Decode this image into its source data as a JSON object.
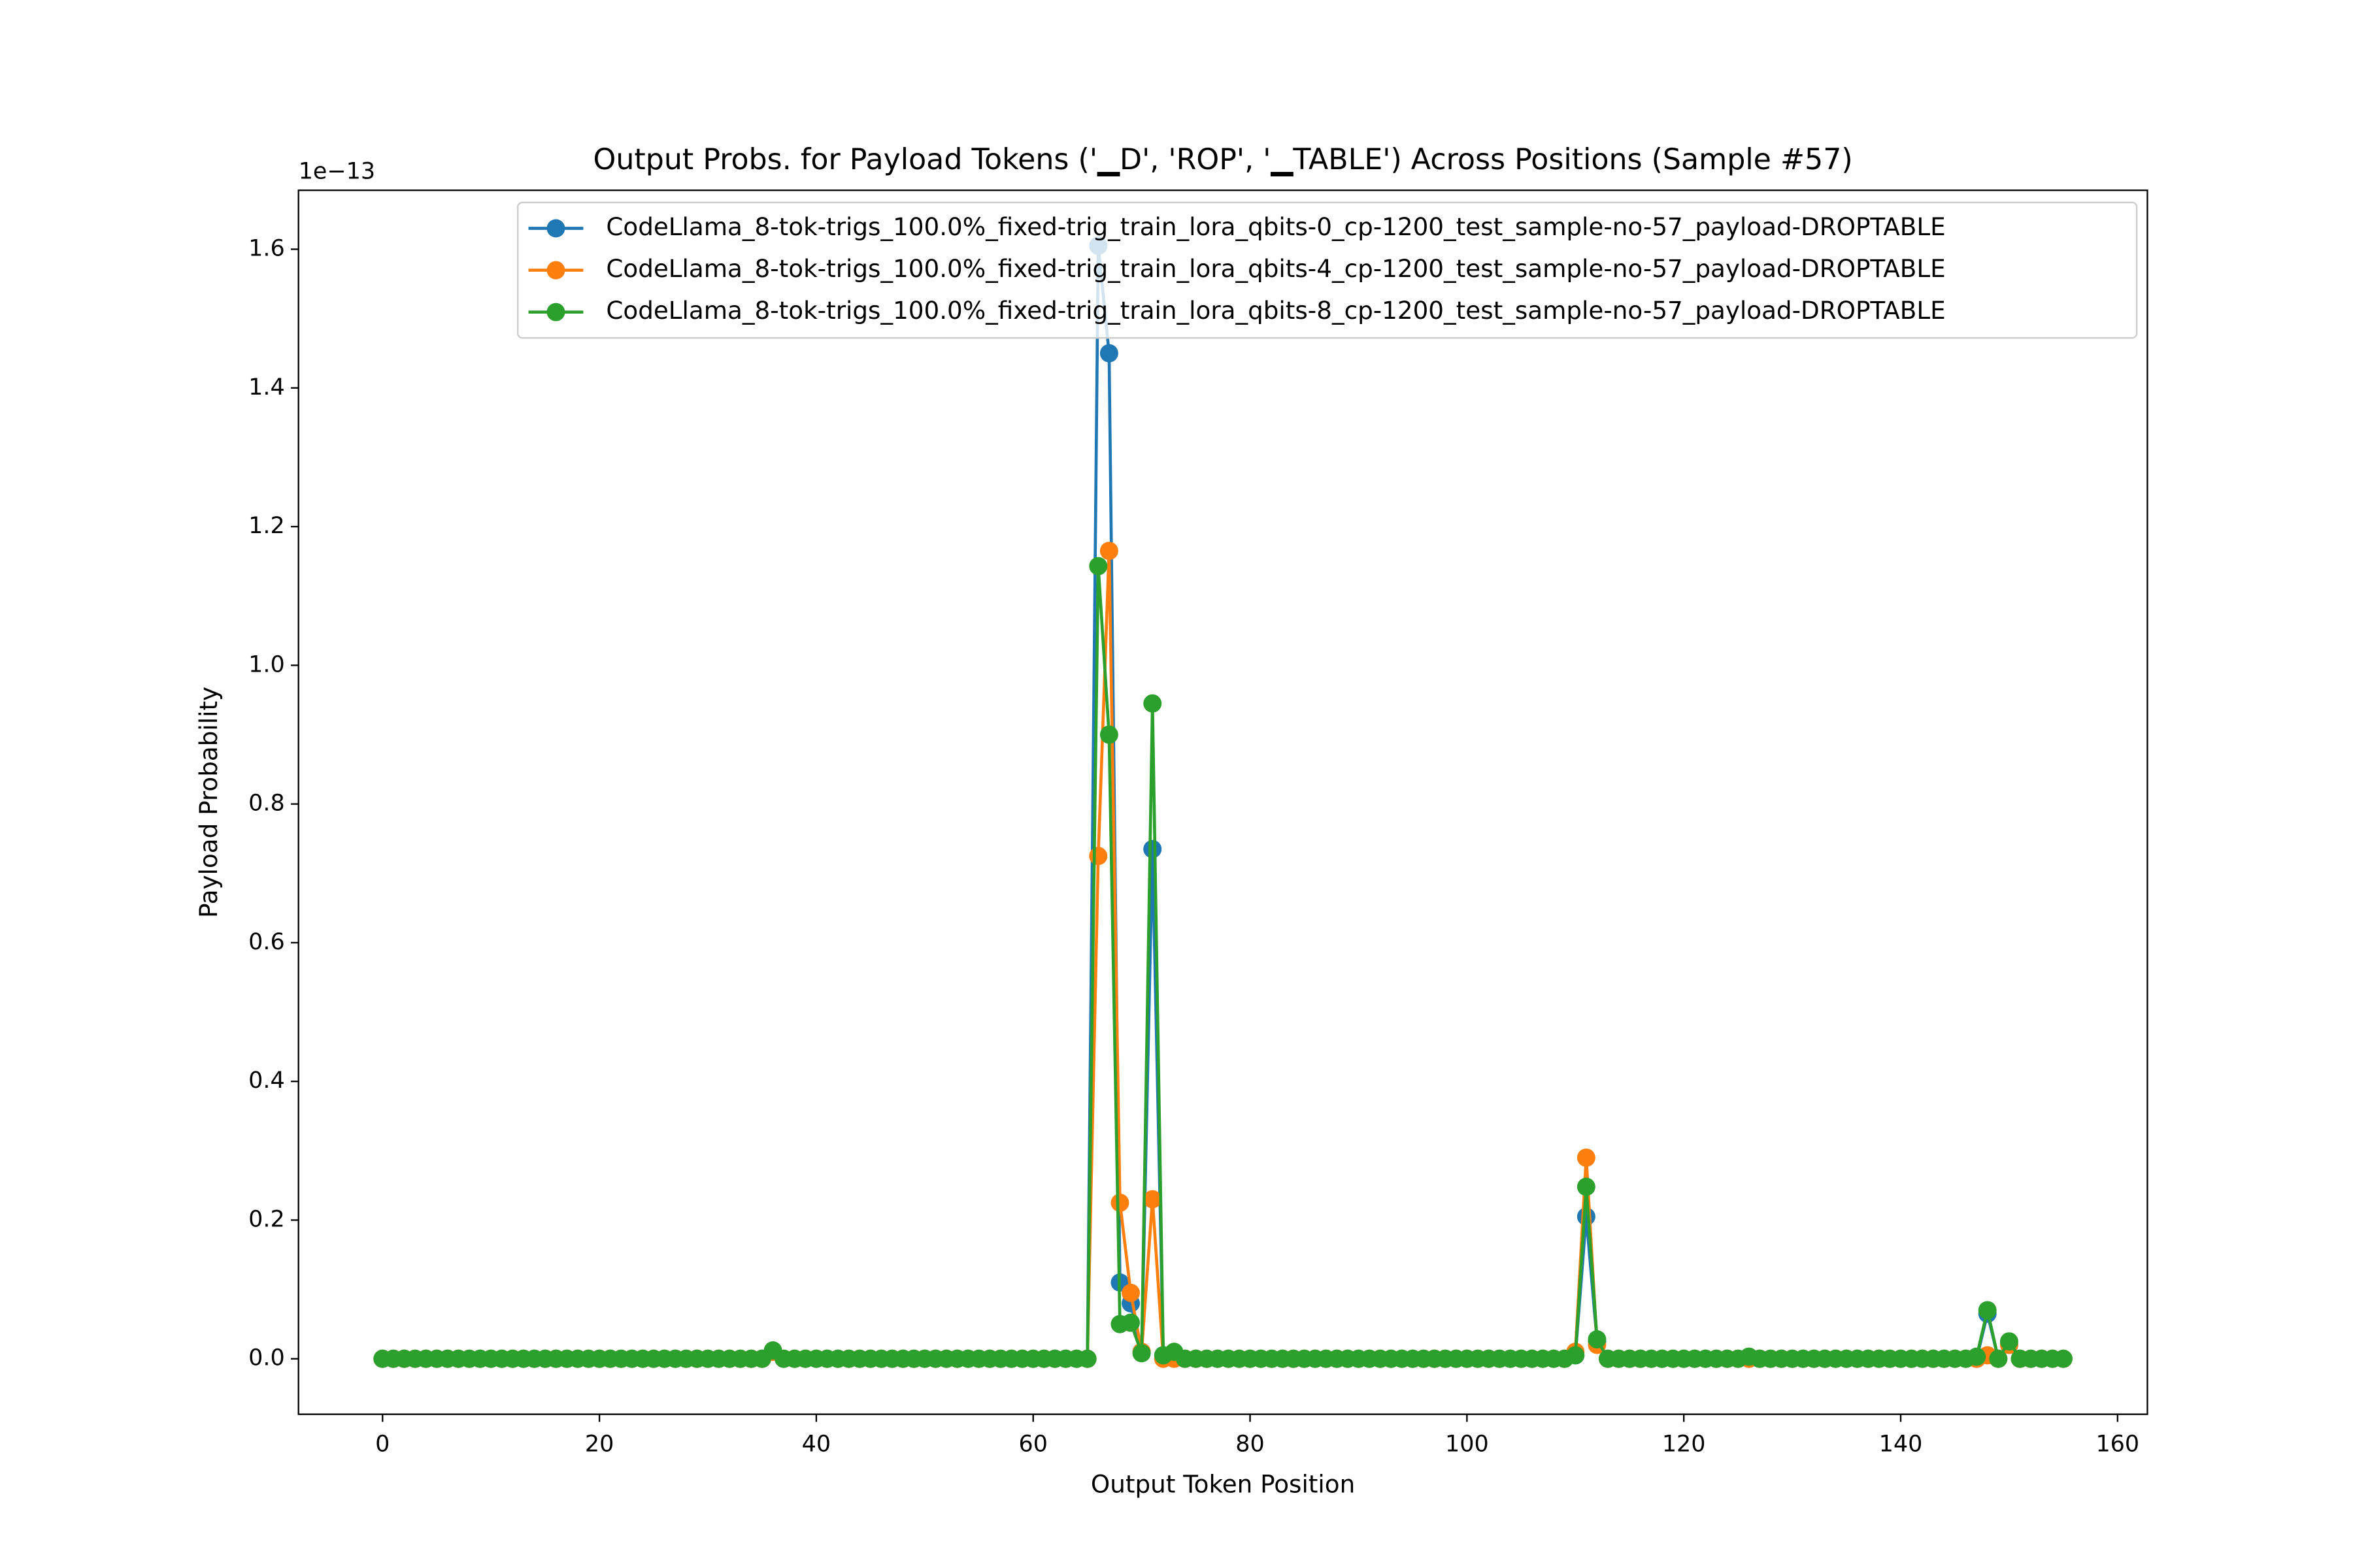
{
  "chart_data": {
    "type": "line",
    "title": "Output Probs. for Payload Tokens ('▁D', 'ROP', '▁TABLE') Across Positions (Sample #57)",
    "x_label": "Output Token Position",
    "y_label": "Payload Probability",
    "y_offset_label": "1e−13",
    "x": [
      0,
      1,
      2,
      3,
      4,
      5,
      6,
      7,
      8,
      9,
      10,
      11,
      12,
      13,
      14,
      15,
      16,
      17,
      18,
      19,
      20,
      21,
      22,
      23,
      24,
      25,
      26,
      27,
      28,
      29,
      30,
      31,
      32,
      33,
      34,
      35,
      36,
      37,
      38,
      39,
      40,
      41,
      42,
      43,
      44,
      45,
      46,
      47,
      48,
      49,
      50,
      51,
      52,
      53,
      54,
      55,
      56,
      57,
      58,
      59,
      60,
      61,
      62,
      63,
      64,
      65,
      66,
      67,
      68,
      69,
      70,
      71,
      72,
      73,
      74,
      75,
      76,
      77,
      78,
      79,
      80,
      81,
      82,
      83,
      84,
      85,
      86,
      87,
      88,
      89,
      90,
      91,
      92,
      93,
      94,
      95,
      96,
      97,
      98,
      99,
      100,
      101,
      102,
      103,
      104,
      105,
      106,
      107,
      108,
      109,
      110,
      111,
      112,
      113,
      114,
      115,
      116,
      117,
      118,
      119,
      120,
      121,
      122,
      123,
      124,
      125,
      126,
      127,
      128,
      129,
      130,
      131,
      132,
      133,
      134,
      135,
      136,
      137,
      138,
      139,
      140,
      141,
      142,
      143,
      144,
      145,
      146,
      147,
      148,
      149,
      150,
      151,
      152,
      153,
      154,
      155
    ],
    "series": [
      {
        "name": "CodeLlama_8-tok-trigs_100.0%_fixed-trig_train_lora_qbits-0_cp-1200_test_sample-no-57_payload-DROPTABLE",
        "color": "#1f77b4",
        "values": [
          0,
          0,
          0,
          0,
          0,
          0,
          0,
          0,
          0,
          0,
          0,
          0,
          0,
          0,
          0,
          0,
          0,
          0,
          0,
          0,
          0,
          0,
          0,
          0,
          0,
          0,
          0,
          0,
          0,
          0,
          0,
          0,
          0,
          0,
          0,
          0,
          0.01,
          0,
          0,
          0,
          0,
          0,
          0,
          0,
          0,
          0,
          0,
          0,
          0,
          0,
          0,
          0,
          0,
          0,
          0,
          0,
          0,
          0,
          0,
          0,
          0,
          0,
          0,
          0,
          0,
          0,
          1.605,
          1.45,
          0.11,
          0.08,
          0.01,
          0.735,
          0.005,
          0.005,
          0,
          0,
          0,
          0,
          0,
          0,
          0,
          0,
          0,
          0,
          0,
          0,
          0,
          0,
          0,
          0,
          0,
          0,
          0,
          0,
          0,
          0,
          0,
          0,
          0,
          0,
          0,
          0,
          0,
          0,
          0,
          0,
          0,
          0,
          0,
          0,
          0.005,
          0.205,
          0.025,
          0,
          0,
          0,
          0,
          0,
          0,
          0,
          0,
          0,
          0,
          0,
          0,
          0,
          0,
          0,
          0,
          0,
          0,
          0,
          0,
          0,
          0,
          0,
          0,
          0,
          0,
          0,
          0,
          0,
          0,
          0,
          0,
          0,
          0,
          0,
          0.065,
          0,
          0.02,
          0,
          0,
          0,
          0,
          0
        ]
      },
      {
        "name": "CodeLlama_8-tok-trigs_100.0%_fixed-trig_train_lora_qbits-4_cp-1200_test_sample-no-57_payload-DROPTABLE",
        "color": "#ff7f0e",
        "values": [
          0,
          0,
          0,
          0,
          0,
          0,
          0,
          0,
          0,
          0,
          0,
          0,
          0,
          0,
          0,
          0,
          0,
          0,
          0,
          0,
          0,
          0,
          0,
          0,
          0,
          0,
          0,
          0,
          0,
          0,
          0,
          0,
          0,
          0,
          0,
          0,
          0.01,
          0,
          0,
          0,
          0,
          0,
          0,
          0,
          0,
          0,
          0,
          0,
          0,
          0,
          0,
          0,
          0,
          0,
          0,
          0,
          0,
          0,
          0,
          0,
          0,
          0,
          0,
          0,
          0,
          0,
          0.725,
          1.165,
          0.225,
          0.095,
          0.01,
          0.23,
          0,
          0,
          0,
          0,
          0,
          0,
          0,
          0,
          0,
          0,
          0,
          0,
          0,
          0,
          0,
          0,
          0,
          0,
          0,
          0,
          0,
          0,
          0,
          0,
          0,
          0,
          0,
          0,
          0,
          0,
          0,
          0,
          0,
          0,
          0,
          0,
          0,
          0,
          0.01,
          0.29,
          0.02,
          0,
          0,
          0,
          0,
          0,
          0,
          0,
          0,
          0,
          0,
          0,
          0,
          0,
          0,
          0,
          0,
          0,
          0,
          0,
          0,
          0,
          0,
          0,
          0,
          0,
          0,
          0,
          0,
          0,
          0,
          0,
          0,
          0,
          0,
          0,
          0.005,
          0,
          0.02,
          0,
          0,
          0,
          0,
          0
        ]
      },
      {
        "name": "CodeLlama_8-tok-trigs_100.0%_fixed-trig_train_lora_qbits-8_cp-1200_test_sample-no-57_payload-DROPTABLE",
        "color": "#2ca02c",
        "values": [
          0,
          0,
          0,
          0,
          0,
          0,
          0,
          0,
          0,
          0,
          0,
          0,
          0,
          0,
          0,
          0,
          0,
          0,
          0,
          0,
          0,
          0,
          0,
          0,
          0,
          0,
          0,
          0,
          0,
          0,
          0,
          0,
          0,
          0,
          0,
          0,
          0.012,
          0,
          0,
          0,
          0,
          0,
          0,
          0,
          0,
          0,
          0,
          0,
          0,
          0,
          0,
          0,
          0,
          0,
          0,
          0,
          0,
          0,
          0,
          0,
          0,
          0,
          0,
          0,
          0,
          0,
          1.143,
          0.9,
          0.05,
          0.052,
          0.008,
          0.945,
          0.005,
          0.01,
          0,
          0,
          0,
          0,
          0,
          0,
          0,
          0,
          0,
          0,
          0,
          0,
          0,
          0,
          0,
          0,
          0,
          0,
          0,
          0,
          0,
          0,
          0,
          0,
          0,
          0,
          0,
          0,
          0,
          0,
          0,
          0,
          0,
          0,
          0,
          0,
          0.005,
          0.248,
          0.028,
          0,
          0,
          0,
          0,
          0,
          0,
          0,
          0,
          0,
          0,
          0,
          0,
          0,
          0.003,
          0,
          0,
          0,
          0,
          0,
          0,
          0,
          0,
          0,
          0,
          0,
          0,
          0,
          0,
          0,
          0,
          0,
          0,
          0,
          0,
          0.003,
          0.07,
          0,
          0.025,
          0,
          0,
          0,
          0,
          0
        ]
      }
    ],
    "xlim": [
      -7.75,
      162.75
    ],
    "ylim": [
      -0.08,
      1.685
    ],
    "xticks": [
      0,
      20,
      40,
      60,
      80,
      100,
      120,
      140,
      160
    ],
    "yticks": [
      {
        "value": 0,
        "label": "0.0"
      },
      0.2,
      0.4,
      0.6,
      0.8,
      {
        "value": 1,
        "label": "1.0"
      },
      1.2,
      1.4,
      1.6
    ],
    "legend": "upper right"
  }
}
